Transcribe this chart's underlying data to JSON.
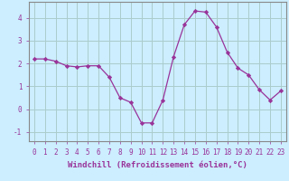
{
  "x": [
    0,
    1,
    2,
    3,
    4,
    5,
    6,
    7,
    8,
    9,
    10,
    11,
    12,
    13,
    14,
    15,
    16,
    17,
    18,
    19,
    20,
    21,
    22,
    23
  ],
  "y": [
    2.2,
    2.2,
    2.1,
    1.9,
    1.85,
    1.9,
    1.9,
    1.4,
    0.5,
    0.3,
    -0.6,
    -0.6,
    0.4,
    2.3,
    3.7,
    4.3,
    4.25,
    3.6,
    2.5,
    1.8,
    1.5,
    0.85,
    0.4,
    0.8
  ],
  "line_color": "#993399",
  "marker": "D",
  "marker_size": 2.2,
  "bg_color": "#cceeff",
  "grid_color": "#aacccc",
  "xlabel": "Windchill (Refroidissement éolien,°C)",
  "xlabel_fontsize": 6.5,
  "tick_fontsize": 5.5,
  "xlim": [
    -0.5,
    23.5
  ],
  "ylim": [
    -1.4,
    4.7
  ],
  "yticks": [
    -1,
    0,
    1,
    2,
    3,
    4
  ],
  "xticks": [
    0,
    1,
    2,
    3,
    4,
    5,
    6,
    7,
    8,
    9,
    10,
    11,
    12,
    13,
    14,
    15,
    16,
    17,
    18,
    19,
    20,
    21,
    22,
    23
  ]
}
